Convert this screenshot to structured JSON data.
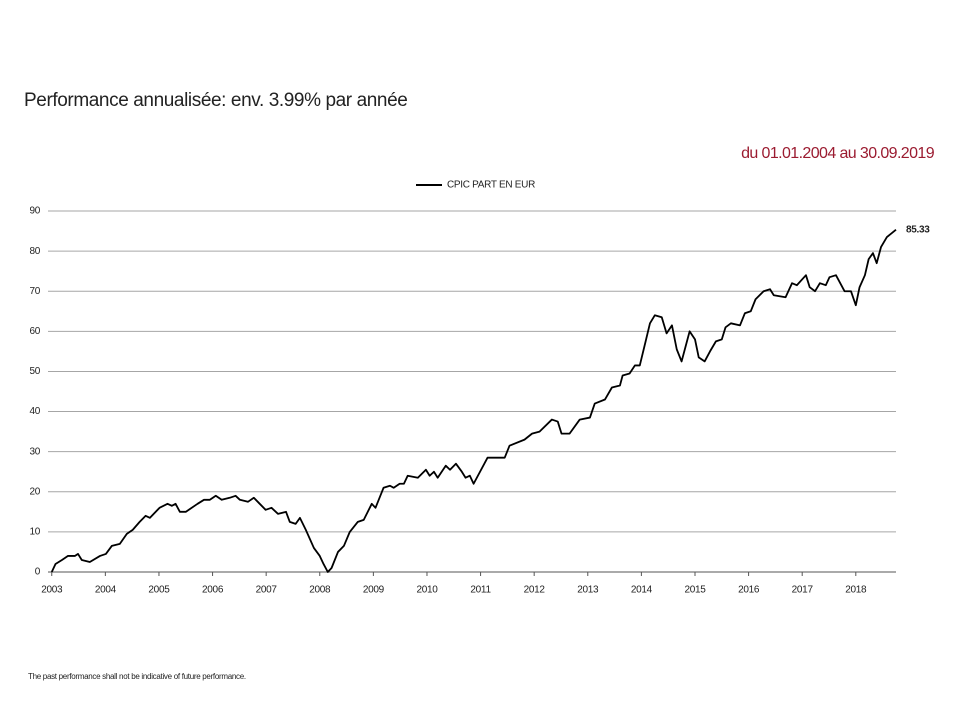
{
  "chart_data": {
    "type": "line",
    "title": "Performance annualisée: env. 3.99% par année",
    "subtitle": "du 01.01.2004 au 30.09.2019",
    "footnote": "The past performance shall not be indicative of future performance.",
    "x": [
      2003.0,
      2003.07,
      2003.19,
      2003.3,
      2003.43,
      2003.49,
      2003.56,
      2003.71,
      2003.9,
      2004.01,
      2004.12,
      2004.27,
      2004.4,
      2004.51,
      2004.64,
      2004.75,
      2004.83,
      2005.01,
      2005.16,
      2005.24,
      2005.31,
      2005.39,
      2005.5,
      2005.72,
      2005.84,
      2005.95,
      2006.06,
      2006.17,
      2006.32,
      2006.43,
      2006.51,
      2006.66,
      2006.77,
      2006.88,
      2006.99,
      2007.1,
      2007.22,
      2007.37,
      2007.44,
      2007.55,
      2007.63,
      2007.74,
      2007.89,
      2008.0,
      2008.07,
      2008.15,
      2008.22,
      2008.34,
      2008.45,
      2008.56,
      2008.71,
      2008.82,
      2008.97,
      2009.04,
      2009.19,
      2009.31,
      2009.38,
      2009.49,
      2009.57,
      2009.64,
      2009.83,
      2009.98,
      2010.05,
      2010.13,
      2010.2,
      2010.35,
      2010.43,
      2010.54,
      2010.65,
      2010.72,
      2010.8,
      2010.87,
      2011.13,
      2011.45,
      2011.54,
      2011.82,
      2011.96,
      2012.1,
      2012.33,
      2012.44,
      2012.51,
      2012.66,
      2012.85,
      2013.04,
      2013.13,
      2013.32,
      2013.45,
      2013.6,
      2013.65,
      2013.78,
      2013.88,
      2013.97,
      2014.07,
      2014.16,
      2014.25,
      2014.38,
      2014.47,
      2014.57,
      2014.66,
      2014.75,
      2014.83,
      2014.9,
      2015.0,
      2015.07,
      2015.18,
      2015.28,
      2015.39,
      2015.5,
      2015.57,
      2015.67,
      2015.84,
      2015.93,
      2016.04,
      2016.13,
      2016.28,
      2016.4,
      2016.47,
      2016.69,
      2016.81,
      2016.9,
      2017.07,
      2017.14,
      2017.24,
      2017.33,
      2017.44,
      2017.51,
      2017.63,
      2017.79,
      2017.91,
      2018.0,
      2018.07,
      2018.17,
      2018.24,
      2018.32,
      2018.39,
      2018.47,
      2018.58,
      2018.75
    ],
    "series": [
      {
        "name": "CPIC PART EN EUR",
        "color": "#000000",
        "values": [
          0,
          2,
          3,
          4,
          4,
          4.5,
          3,
          2.5,
          4,
          4.5,
          6.5,
          7,
          9.5,
          10.5,
          12.5,
          14,
          13.5,
          16,
          17,
          16.5,
          17,
          15,
          15,
          17,
          18,
          18,
          19,
          18,
          18.5,
          19,
          18,
          17.5,
          18.5,
          17,
          15.5,
          16,
          14.5,
          15,
          12.5,
          12,
          13.5,
          10.5,
          6,
          4,
          2,
          0,
          1,
          5,
          6.5,
          10,
          12.5,
          13,
          17,
          16,
          21,
          21.5,
          21,
          22,
          22,
          24,
          23.5,
          25.5,
          24,
          25,
          23.5,
          26.5,
          25.5,
          27,
          25,
          23.5,
          24,
          22,
          28.5,
          28.5,
          31.5,
          33,
          34.5,
          35,
          38,
          37.5,
          34.5,
          34.5,
          38,
          38.5,
          42,
          43,
          46,
          46.5,
          49,
          49.5,
          51.5,
          51.5,
          57,
          62,
          64,
          63.5,
          59.5,
          61.5,
          55.5,
          52.5,
          56.5,
          60,
          58,
          53.5,
          52.5,
          55,
          57.5,
          58,
          61,
          62,
          61.5,
          64.5,
          65,
          68,
          70,
          70.5,
          69,
          68.5,
          72,
          71.5,
          74,
          71,
          70,
          72,
          71.5,
          73.5,
          74,
          70,
          70,
          66.5,
          71,
          74,
          78,
          79.5,
          77,
          81,
          83.5,
          85.33
        ]
      }
    ],
    "xlim": [
      2002.93,
      2018.75
    ],
    "xticks": [
      2003,
      2004,
      2005,
      2006,
      2007,
      2008,
      2009,
      2010,
      2011,
      2012,
      2013,
      2014,
      2015,
      2016,
      2017,
      2018
    ],
    "ylim": [
      0,
      90
    ],
    "yticks": [
      0,
      10,
      20,
      30,
      40,
      50,
      60,
      70,
      80,
      90
    ],
    "grid": true,
    "legend": "top"
  }
}
